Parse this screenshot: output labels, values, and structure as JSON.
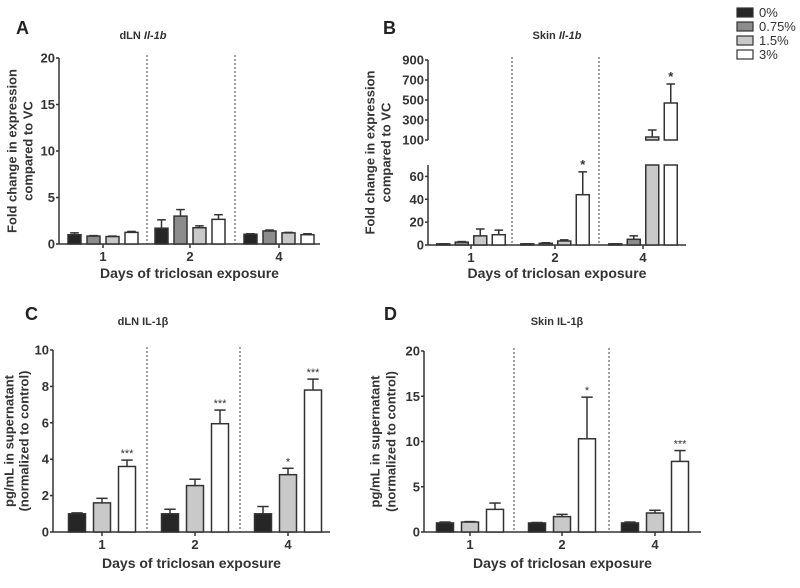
{
  "legend": [
    {
      "label": "0%",
      "color": "#262626"
    },
    {
      "label": "0.75%",
      "color": "#8c8c8c"
    },
    {
      "label": "1.5%",
      "color": "#c9c9c9"
    },
    {
      "label": "3%",
      "color": "#ffffff"
    }
  ],
  "chart_data": [
    {
      "type": "bar",
      "panel": "A",
      "title_prefix": "dLN ",
      "title_italic": "Il-1b",
      "ylabel": [
        "Fold change in expression",
        "compared to VC"
      ],
      "xlabel": "Days of triclosan exposure",
      "categories": [
        "1",
        "2",
        "4"
      ],
      "ylim": [
        0,
        20
      ],
      "yticks": [
        0,
        5,
        10,
        15,
        20
      ],
      "series": [
        {
          "name": "0%",
          "values": [
            1.0,
            1.7,
            1.05
          ],
          "err": [
            1.2,
            2.6,
            1.1
          ],
          "sig": [
            "",
            "",
            ""
          ]
        },
        {
          "name": "0.75%",
          "values": [
            0.85,
            3.0,
            1.4
          ],
          "err": [
            0.9,
            3.7,
            1.5
          ],
          "sig": [
            "",
            "",
            ""
          ]
        },
        {
          "name": "1.5%",
          "values": [
            0.8,
            1.75,
            1.2
          ],
          "err": [
            0.85,
            1.95,
            1.25
          ],
          "sig": [
            "",
            "",
            ""
          ]
        },
        {
          "name": "3%",
          "values": [
            1.25,
            2.65,
            1.0
          ],
          "err": [
            1.35,
            3.15,
            1.1
          ],
          "sig": [
            "",
            "",
            ""
          ]
        }
      ]
    },
    {
      "type": "bar",
      "panel": "B",
      "title_prefix": "Skin ",
      "title_italic": "Il-1b",
      "ylabel": [
        "Fold change in expression",
        "compared to VC"
      ],
      "xlabel": "Days of triclosan exposure",
      "categories": [
        "1",
        "2",
        "4"
      ],
      "axis_break": {
        "lower": [
          0,
          70
        ],
        "upper": [
          100,
          900
        ]
      },
      "yticks": [
        0,
        20,
        40,
        60,
        100,
        300,
        500,
        700,
        900
      ],
      "series": [
        {
          "name": "0%",
          "values": [
            1,
            1,
            1
          ],
          "err": [
            1,
            1,
            1
          ],
          "sig": [
            "",
            "",
            ""
          ]
        },
        {
          "name": "0.75%",
          "values": [
            2.5,
            1.5,
            5
          ],
          "err": [
            3,
            2,
            8
          ],
          "sig": [
            "",
            "",
            ""
          ]
        },
        {
          "name": "1.5%",
          "values": [
            8,
            3.5,
            130
          ],
          "err": [
            14,
            4.5,
            200
          ],
          "sig": [
            "",
            "",
            ""
          ]
        },
        {
          "name": "3%",
          "values": [
            9,
            44,
            470
          ],
          "err": [
            13,
            64,
            660
          ],
          "sig": [
            "",
            "*",
            "*"
          ]
        }
      ]
    },
    {
      "type": "bar",
      "panel": "C",
      "title_prefix": "dLN IL-1β",
      "title_italic": "",
      "ylabel": [
        "pg/mL in supernatant",
        "(normalized to control)"
      ],
      "xlabel": "Days of triclosan exposure",
      "categories": [
        "1",
        "2",
        "4"
      ],
      "ylim": [
        0,
        10
      ],
      "yticks": [
        0,
        2,
        4,
        6,
        8,
        10
      ],
      "series": [
        {
          "name": "0%",
          "values": [
            1.0,
            1.0,
            1.0
          ],
          "err": [
            1.05,
            1.25,
            1.4
          ],
          "sig": [
            "",
            "",
            ""
          ]
        },
        {
          "name": "1.5%",
          "values": [
            1.6,
            2.55,
            3.15
          ],
          "err": [
            1.85,
            2.9,
            3.5
          ],
          "sig": [
            "",
            "",
            "*"
          ]
        },
        {
          "name": "3%",
          "values": [
            3.6,
            5.95,
            7.8
          ],
          "err": [
            3.95,
            6.7,
            8.4
          ],
          "sig": [
            "***",
            "***",
            "***"
          ]
        }
      ]
    },
    {
      "type": "bar",
      "panel": "D",
      "title_prefix": "Skin IL-1β",
      "title_italic": "",
      "ylabel": [
        "pg/mL in supernatant",
        "(normalized to control)"
      ],
      "xlabel": "Days of triclosan exposure",
      "categories": [
        "1",
        "2",
        "4"
      ],
      "ylim": [
        0,
        20
      ],
      "yticks": [
        0,
        5,
        10,
        15,
        20
      ],
      "series": [
        {
          "name": "0%",
          "values": [
            1.0,
            1.0,
            1.0
          ],
          "err": [
            1.1,
            1.05,
            1.1
          ],
          "sig": [
            "",
            "",
            ""
          ]
        },
        {
          "name": "1.5%",
          "values": [
            1.1,
            1.7,
            2.1
          ],
          "err": [
            1.15,
            1.95,
            2.4
          ],
          "sig": [
            "",
            "",
            ""
          ]
        },
        {
          "name": "3%",
          "values": [
            2.5,
            10.3,
            7.8
          ],
          "err": [
            3.2,
            14.9,
            9.0
          ],
          "sig": [
            "",
            "*",
            "***"
          ]
        }
      ]
    }
  ]
}
